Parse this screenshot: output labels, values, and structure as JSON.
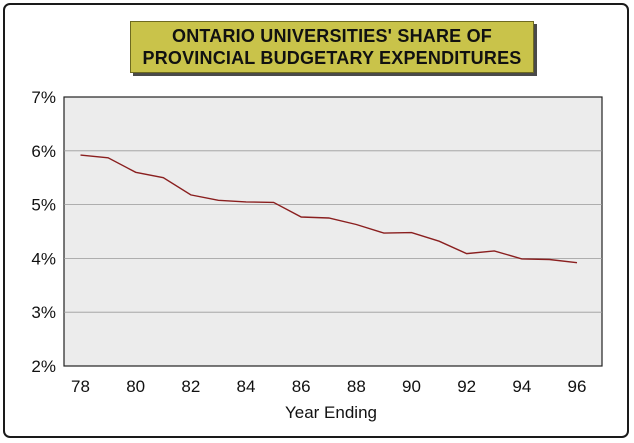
{
  "chart_data": {
    "type": "line",
    "title_lines": [
      "ONTARIO UNIVERSITIES' SHARE OF",
      "PROVINCIAL BUDGETARY EXPENDITURES"
    ],
    "xlabel": "Year Ending",
    "ylabel": "",
    "x_ticks": [
      "78",
      "80",
      "82",
      "84",
      "86",
      "88",
      "90",
      "92",
      "94",
      "96"
    ],
    "y_ticks": [
      "2%",
      "3%",
      "4%",
      "5%",
      "6%",
      "7%"
    ],
    "xlim": [
      78,
      96
    ],
    "ylim": [
      2,
      7
    ],
    "grid": "horizontal",
    "legend": "none",
    "series": [
      {
        "x": [
          78,
          79,
          80,
          81,
          82,
          83,
          84,
          85,
          86,
          87,
          88,
          89,
          90,
          91,
          92,
          93,
          94,
          95,
          96
        ],
        "values": [
          5.92,
          5.87,
          5.6,
          5.5,
          5.18,
          5.08,
          5.05,
          5.04,
          4.77,
          4.75,
          4.63,
          4.47,
          4.48,
          4.32,
          4.09,
          4.14,
          3.99,
          3.98,
          3.92
        ],
        "color": "#8a1f1f"
      }
    ],
    "colors": {
      "plot_background": "#ececec",
      "title_background": "#c9c34a"
    }
  }
}
